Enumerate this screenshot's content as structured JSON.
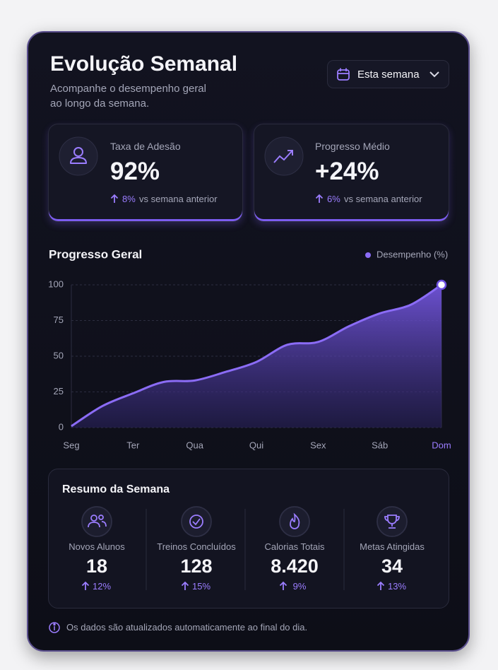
{
  "header": {
    "title": "Evolução Semanal",
    "subtitle": "Acompanhe o desempenho geral ao longo da semana.",
    "dropdown": "Esta semana"
  },
  "stats": [
    {
      "label": "Taxa de Adesão",
      "value": "92%",
      "change": "8%",
      "comparison": "vs semana anterior"
    },
    {
      "label": "Progresso Médio",
      "value": "+24%",
      "change": "6%",
      "comparison": "vs semana anterior"
    }
  ],
  "chart_data": {
    "type": "line",
    "title": "Progresso Geral",
    "categories": [
      "Seg",
      null,
      "Ter",
      null,
      "Qua",
      null,
      "Qui",
      null,
      "Sex",
      null,
      "Sáb",
      null,
      "Dom"
    ],
    "series": [
      {
        "name": "Desempenho (%)",
        "color": "#8b6cf6",
        "values": [
          1,
          15,
          24,
          32,
          33,
          39,
          46,
          58,
          60,
          71,
          80,
          86,
          100
        ]
      }
    ],
    "ylim": [
      0,
      100
    ],
    "yticks": [
      0,
      25,
      50,
      75,
      100
    ],
    "grid": true,
    "area": true,
    "legend": "top-right"
  },
  "summary": {
    "title": "Resumo da Semana",
    "items": [
      {
        "label": "Novos Alunos",
        "value": "18",
        "change": "12%"
      },
      {
        "label": "Treinos Concluídos",
        "value": "128",
        "change": "15%"
      },
      {
        "label": "Calorias Totais",
        "value": "8.420",
        "change": "9%"
      },
      {
        "label": "Metas Atingidas",
        "value": "34",
        "change": "13%"
      }
    ]
  },
  "footer": {
    "note": "Os dados são atualizados automaticamente ao final do dia."
  }
}
